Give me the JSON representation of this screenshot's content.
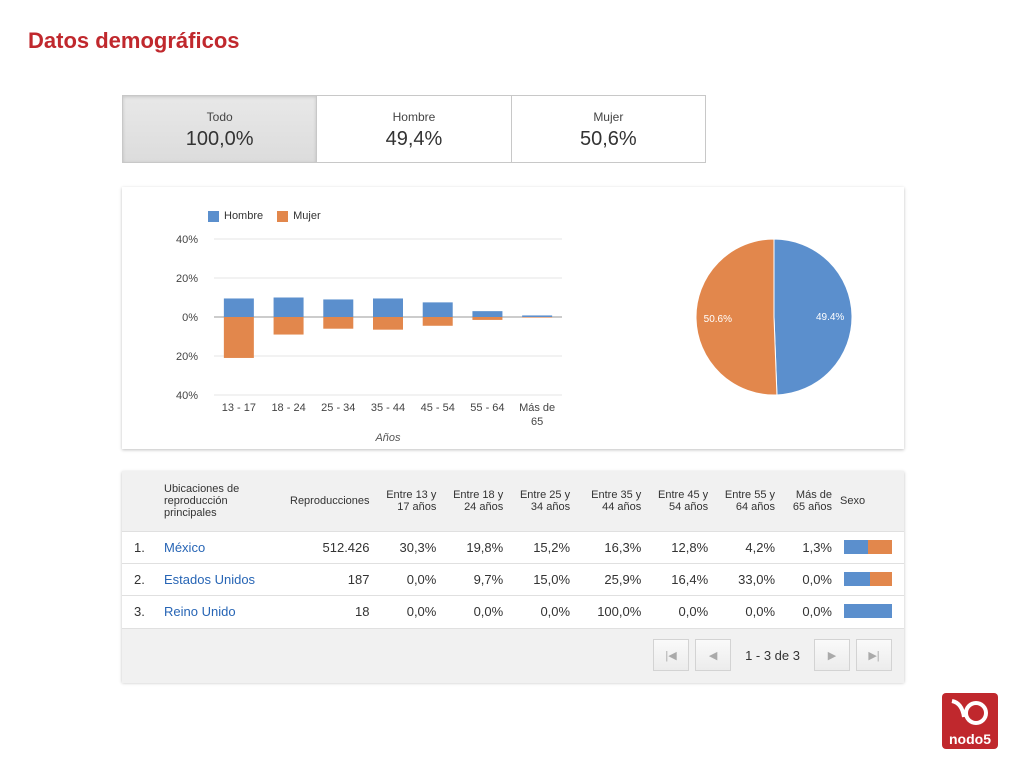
{
  "page": {
    "title": "Datos demográficos"
  },
  "segments": [
    {
      "label": "Todo",
      "value": "100,0%",
      "active": true
    },
    {
      "label": "Hombre",
      "value": "49,4%",
      "active": false
    },
    {
      "label": "Mujer",
      "value": "50,6%",
      "active": false
    }
  ],
  "colors": {
    "hombre": "#5b8fcd",
    "mujer": "#e2874c",
    "title": "#c0282d",
    "link": "#2765b5"
  },
  "chart_data": [
    {
      "type": "bar",
      "categories": [
        "13 - 17",
        "18 - 24",
        "25 - 34",
        "35 - 44",
        "45 - 54",
        "55 - 64",
        "Más de 65"
      ],
      "series": [
        {
          "name": "Hombre",
          "values": [
            9.5,
            10,
            9,
            9.5,
            7.5,
            3,
            0.8
          ]
        },
        {
          "name": "Mujer",
          "values": [
            -21,
            -9,
            -6,
            -6.5,
            -4.5,
            -1.5,
            -0.3
          ]
        }
      ],
      "yticks": [
        "40%",
        "20%",
        "0%",
        "20%",
        "40%"
      ],
      "ylim": [
        -40,
        40
      ],
      "xlabel": "Años",
      "legend": "top-left"
    },
    {
      "type": "pie",
      "labels": [
        "Hombre",
        "Mujer"
      ],
      "values": [
        49.4,
        50.6
      ],
      "slice_labels": [
        "49.4%",
        "50.6%"
      ]
    }
  ],
  "table": {
    "headers": {
      "location": "Ubicaciones de reproducción principales",
      "plays": "Reproducciones",
      "ages": [
        "Entre 13 y 17 años",
        "Entre 18 y 24 años",
        "Entre 25 y 34 años",
        "Entre 35 y 44 años",
        "Entre 45 y 54 años",
        "Entre 55 y 64 años",
        "Más de 65 años"
      ],
      "sex": "Sexo"
    },
    "rows": [
      {
        "index": "1.",
        "location": "México",
        "plays": "512.426",
        "ages": [
          "30,3%",
          "19,8%",
          "15,2%",
          "16,3%",
          "12,8%",
          "4,2%",
          "1,3%"
        ],
        "male_share": 0.5
      },
      {
        "index": "2.",
        "location": "Estados Unidos",
        "plays": "187",
        "ages": [
          "0,0%",
          "9,7%",
          "15,0%",
          "25,9%",
          "16,4%",
          "33,0%",
          "0,0%"
        ],
        "male_share": 0.55
      },
      {
        "index": "3.",
        "location": "Reino Unido",
        "plays": "18",
        "ages": [
          "0,0%",
          "0,0%",
          "0,0%",
          "100,0%",
          "0,0%",
          "0,0%",
          "0,0%"
        ],
        "male_share": 1.0
      }
    ],
    "pagination": {
      "info": "1 - 3 de 3"
    }
  },
  "logo": {
    "text": "nodo5"
  }
}
